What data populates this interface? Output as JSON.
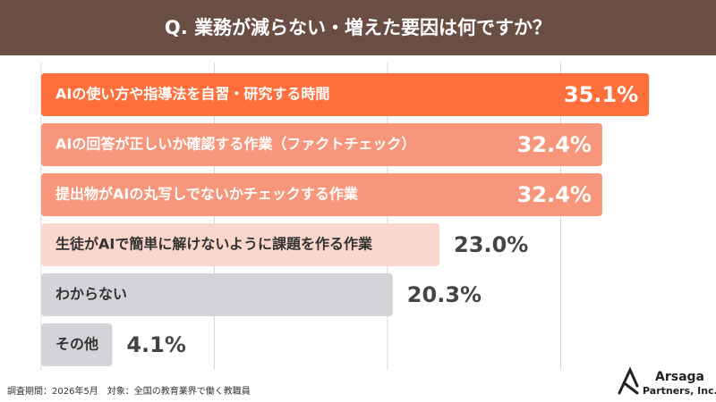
{
  "chart_data": {
    "type": "bar",
    "orientation": "horizontal",
    "title": "Q. 業務が減らない・増えた要因は何ですか？",
    "categories": [
      "AIの使い方や指導法を自習・研究する時間",
      "AIの回答が正しいか確認する作業（ファクトチェック）",
      "提出物がAIの丸写しでないかチェックする作業",
      "生徒がAIで簡単に解けないように課題を作る作業",
      "わからない",
      "その他"
    ],
    "values": [
      35.1,
      32.4,
      32.4,
      23.0,
      20.3,
      4.1
    ],
    "value_labels": [
      "35.1%",
      "32.4%",
      "32.4%",
      "23.0%",
      "20.3%",
      "4.1%"
    ],
    "colors": [
      "#ff6f3c",
      "#f7967a",
      "#f7967a",
      "#fad6cc",
      "#d4d4d8",
      "#d4d4d8"
    ],
    "xlim": [
      0,
      40
    ],
    "xticks": [
      0,
      10,
      20,
      30
    ],
    "grid": true,
    "footnote": "調査期間：2026年5月　対象：全国の教育業界で働く教職員"
  },
  "brand": {
    "name": "Arsaga",
    "sub": "Partners, Inc."
  }
}
